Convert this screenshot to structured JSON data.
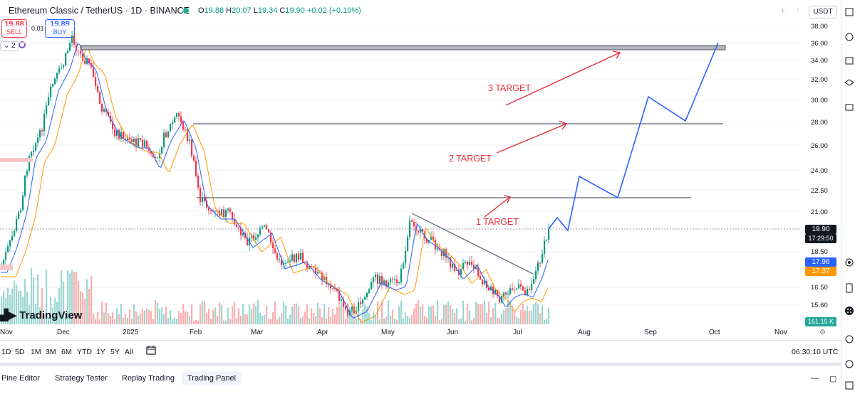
{
  "header": {
    "title": "Ethereum Classic / TetherUS · 1D · BINANCE",
    "ohlc": [
      {
        "k": "O",
        "v": "19.88"
      },
      {
        "k": "H",
        "v": "20.07"
      },
      {
        "k": "L",
        "v": "19.34"
      },
      {
        "k": "C",
        "v": "19.90"
      },
      {
        "k": "",
        "v": "+0.02 (+0.10%)"
      }
    ],
    "currency": "USDT"
  },
  "trade": {
    "sell_price": "19.88",
    "sell_label": "SELL",
    "buy_price": "19.89",
    "buy_label": "BUY",
    "spread": "0.01"
  },
  "indicators": {
    "count": "2"
  },
  "price_scale": {
    "ticks": [
      "38.00",
      "36.00",
      "34.00",
      "32.00",
      "30.00",
      "28.00",
      "26.00",
      "24.00",
      "22.50",
      "21.00",
      "18.50",
      "16.50",
      "15.60"
    ],
    "current_price": "19.90",
    "countdown": "17:29:50",
    "ma_fast": "17.96",
    "ma_slow": "17.37",
    "volume": "161.15 K"
  },
  "time_axis": {
    "labels": [
      "Nov",
      "Dec",
      "2025",
      "Feb",
      "Mar",
      "Apr",
      "May",
      "Jun",
      "Jul",
      "Aug",
      "Sep",
      "Oct",
      "Nov"
    ]
  },
  "ranges": [
    "1D",
    "5D",
    "1M",
    "3M",
    "6M",
    "YTD",
    "1Y",
    "5Y",
    "All"
  ],
  "clock": "06:30:10 UTC",
  "tabs": [
    "Pine Editor",
    "Strategy Tester",
    "Replay Trading",
    "Trading Panel"
  ],
  "annotations": {
    "t1": "1 TARGET",
    "t2": "2 TARGET",
    "t3": "3 TARGET"
  },
  "branding": "TradingView",
  "colors": {
    "up": "#089981",
    "down": "#f23645",
    "ma_fast": "#2962ff",
    "ma_slow": "#ff9800",
    "projection": "#2962ff",
    "target_arrow": "#e5303d"
  }
}
